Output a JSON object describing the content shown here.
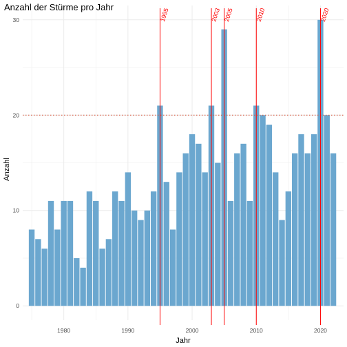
{
  "chart_data": {
    "type": "bar",
    "title": "Anzahl der Stürme pro Jahr",
    "xlabel": "Jahr",
    "ylabel": "Anzahl",
    "x": [
      1975,
      1976,
      1977,
      1978,
      1979,
      1980,
      1981,
      1982,
      1983,
      1984,
      1985,
      1986,
      1987,
      1988,
      1989,
      1990,
      1991,
      1992,
      1993,
      1994,
      1995,
      1996,
      1997,
      1998,
      1999,
      2000,
      2001,
      2002,
      2003,
      2004,
      2005,
      2006,
      2007,
      2008,
      2009,
      2010,
      2011,
      2012,
      2013,
      2014,
      2015,
      2016,
      2017,
      2018,
      2019,
      2020,
      2021,
      2022
    ],
    "values": [
      8,
      7,
      6,
      11,
      8,
      11,
      11,
      5,
      4,
      12,
      11,
      6,
      7,
      12,
      11,
      14,
      10,
      9,
      10,
      12,
      21,
      13,
      8,
      14,
      16,
      18,
      17,
      14,
      21,
      15,
      29,
      11,
      16,
      17,
      11,
      21,
      20,
      19,
      14,
      9,
      12,
      16,
      18,
      16,
      18,
      30,
      20,
      16
    ],
    "xlim": [
      1973.6,
      2023.6
    ],
    "ylim": [
      -1.5,
      31.5
    ],
    "xticks": [
      1980,
      1990,
      2000,
      2010,
      2020
    ],
    "yticks": [
      0,
      10,
      20,
      30
    ],
    "bar_color": "#6BA7CF",
    "hline": {
      "y": 20,
      "color": "#D9553A",
      "style": "dotted"
    },
    "vlines": [
      {
        "x": 1995,
        "label": "1995"
      },
      {
        "x": 2003,
        "label": "2003"
      },
      {
        "x": 2005,
        "label": "2005"
      },
      {
        "x": 2010,
        "label": "2010"
      },
      {
        "x": 2020,
        "label": "2020"
      }
    ],
    "vline_color": "#FF0000",
    "grid": true,
    "legend": "none"
  }
}
